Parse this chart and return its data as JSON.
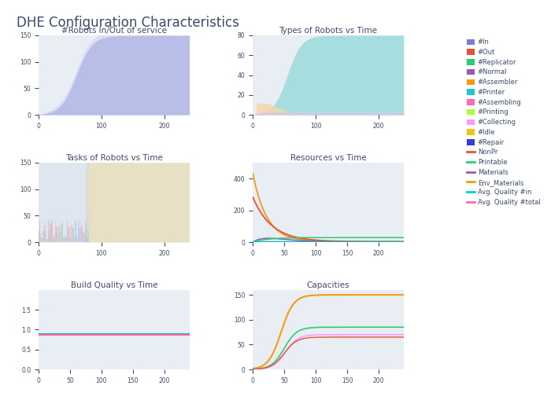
{
  "title": "DHE Configuration Characteristics",
  "subplot_titles": [
    "#Robots In/Out of service",
    "Types of Robots vs Time",
    "Tasks of Robots vs Time",
    "Resources vs Time",
    "Build Quality vs Time",
    "Capacities"
  ],
  "legend_patches": [
    {
      "label": "#In",
      "color": "#7B7FD4"
    },
    {
      "label": "#Out",
      "color": "#E8503A"
    },
    {
      "label": "#Replicator",
      "color": "#2ECC71"
    },
    {
      "label": "#Normal",
      "color": "#9B59B6"
    },
    {
      "label": "#Assembler",
      "color": "#F39C12"
    },
    {
      "label": "#Printer",
      "color": "#1BC8D4"
    },
    {
      "label": "#Assembling",
      "color": "#FF69B4"
    },
    {
      "label": "#Printing",
      "color": "#ADFF2F"
    },
    {
      "label": "#Collecting",
      "color": "#FF99FF"
    },
    {
      "label": "#Idle",
      "color": "#F1C40F"
    },
    {
      "label": "#Repair",
      "color": "#3A3AD4"
    }
  ],
  "legend_lines": [
    {
      "label": "NonPr",
      "color": "#E8503A"
    },
    {
      "label": "Printable",
      "color": "#2ECC71"
    },
    {
      "label": "Materials",
      "color": "#9B59B6"
    },
    {
      "label": "Env_Materials",
      "color": "#F39C12"
    },
    {
      "label": "Avg. Quality #in",
      "color": "#00CCCC"
    },
    {
      "label": "Avg. Quality #total",
      "color": "#FF69B4"
    }
  ],
  "bg_color": "#E8EEF4",
  "fig_bg": "#FFFFFF",
  "subplot_bg": "#E8EEF4",
  "title_color": "#3D4A6B",
  "tick_color": "#3D4A6B"
}
